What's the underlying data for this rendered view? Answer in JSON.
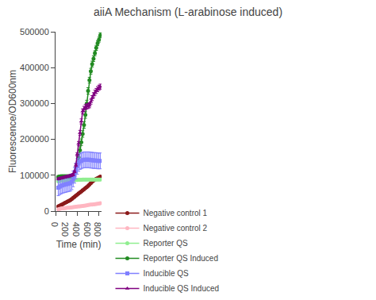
{
  "chart_data": {
    "type": "line",
    "title": "aiiA Mechanism (L-arabinose induced)",
    "xlabel": "Time (min)",
    "ylabel": "Fluorescence/OD600nm",
    "xlim": [
      0,
      850
    ],
    "ylim": [
      0,
      500000
    ],
    "xticks": [
      0,
      200,
      400,
      600,
      800
    ],
    "yticks": [
      0,
      100000,
      200000,
      300000,
      400000,
      500000
    ],
    "grid": false,
    "legend": "bottom",
    "x": [
      50,
      75,
      100,
      125,
      150,
      175,
      200,
      225,
      250,
      275,
      300,
      325,
      350,
      375,
      400,
      425,
      450,
      475,
      500,
      525,
      550,
      575,
      600,
      625,
      650,
      675,
      700,
      725,
      750,
      775,
      800,
      825
    ],
    "series": [
      {
        "name": "Negative control 1",
        "color": "#8B1A1A",
        "marker": "circle",
        "values": [
          13000,
          15000,
          17000,
          19000,
          21000,
          23000,
          25000,
          27000,
          29000,
          31000,
          34000,
          37000,
          40000,
          43000,
          46000,
          49000,
          52000,
          55000,
          58000,
          61000,
          64000,
          67000,
          70000,
          74000,
          78000,
          82000,
          85000,
          88000,
          90000,
          92000,
          94000,
          96000
        ],
        "yerr": [
          1500,
          1500,
          1500,
          1500,
          1500,
          1500,
          1500,
          1500,
          1500,
          1500,
          1500,
          1500,
          1500,
          1500,
          1500,
          1500,
          1500,
          1500,
          1500,
          1500,
          1500,
          1500,
          1500,
          1500,
          1500,
          1500,
          1500,
          1500,
          1500,
          1500,
          1500,
          1500
        ]
      },
      {
        "name": "Negative control 2",
        "color": "#FFB6C1",
        "marker": "circle",
        "values": [
          5000,
          6000,
          7000,
          7500,
          8000,
          8500,
          9000,
          9500,
          9500,
          10000,
          10500,
          11000,
          11500,
          12000,
          12500,
          13000,
          13500,
          14000,
          14500,
          15000,
          15500,
          16000,
          17000,
          17500,
          18000,
          18500,
          19000,
          19500,
          20000,
          20500,
          21000,
          22000
        ],
        "yerr": [
          800,
          800,
          800,
          800,
          800,
          800,
          800,
          800,
          800,
          800,
          800,
          800,
          800,
          800,
          800,
          800,
          800,
          800,
          800,
          800,
          800,
          800,
          800,
          800,
          800,
          800,
          800,
          800,
          800,
          800,
          800,
          800
        ]
      },
      {
        "name": "Reporter QS",
        "color": "#90EE90",
        "marker": "circle",
        "values": [
          83000,
          84000,
          84500,
          85000,
          85000,
          85000,
          85500,
          86000,
          86000,
          86000,
          86000,
          86000,
          86500,
          87000,
          87000,
          87500,
          87500,
          87500,
          88000,
          88000,
          88000,
          88000,
          88000,
          88000,
          88000,
          88000,
          88000,
          88000,
          88000,
          88000,
          88000,
          88000
        ],
        "yerr": [
          2000,
          2000,
          2000,
          2000,
          2000,
          2000,
          2000,
          2000,
          2000,
          2000,
          2000,
          2000,
          2000,
          2000,
          2000,
          2000,
          2000,
          2000,
          2000,
          2000,
          2000,
          2000,
          2000,
          2000,
          2000,
          2000,
          2000,
          2000,
          2000,
          2000,
          2000,
          2000
        ]
      },
      {
        "name": "Reporter QS Induced",
        "color": "#228B22",
        "marker": "circle",
        "values": [
          95000,
          96000,
          97000,
          97000,
          97000,
          97000,
          97000,
          97000,
          97000,
          97000,
          98000,
          100000,
          105000,
          115000,
          130000,
          150000,
          170000,
          192000,
          215000,
          240000,
          268000,
          300000,
          335000,
          365000,
          390000,
          410000,
          425000,
          440000,
          455000,
          468000,
          478000,
          490000
        ],
        "yerr": [
          4000,
          4000,
          4000,
          4000,
          4000,
          4000,
          4000,
          4000,
          4000,
          4000,
          4000,
          4000,
          5000,
          6000,
          7000,
          8000,
          9000,
          9000,
          9000,
          9000,
          9000,
          9000,
          9000,
          8000,
          8000,
          8000,
          8000,
          7000,
          7000,
          7000,
          7000,
          7000
        ]
      },
      {
        "name": "Inducible QS",
        "color": "#8080FF",
        "marker": "square",
        "values": [
          65000,
          68000,
          70000,
          72000,
          73000,
          74000,
          75000,
          76000,
          77000,
          78000,
          82000,
          90000,
          100000,
          112000,
          125000,
          133000,
          138000,
          140000,
          142000,
          143000,
          143000,
          143000,
          143000,
          143000,
          142000,
          142000,
          141000,
          141000,
          141000,
          140000,
          140000,
          140000
        ],
        "yerr": [
          22000,
          22000,
          22000,
          22000,
          22000,
          22000,
          22000,
          22000,
          22000,
          22000,
          22000,
          22000,
          22000,
          22000,
          22000,
          22000,
          22000,
          22000,
          22000,
          22000,
          22000,
          22000,
          22000,
          22000,
          22000,
          22000,
          22000,
          22000,
          22000,
          22000,
          22000,
          22000
        ]
      },
      {
        "name": "Inducible QS Induced",
        "color": "#800080",
        "marker": "triangle-up",
        "values": [
          90000,
          91000,
          92000,
          93000,
          94000,
          95000,
          96000,
          97000,
          98000,
          99000,
          100000,
          102000,
          110000,
          128000,
          158000,
          188000,
          218000,
          250000,
          278000,
          285000,
          290000,
          292000,
          293000,
          295000,
          305000,
          315000,
          323000,
          330000,
          335000,
          340000,
          344000,
          347000
        ],
        "yerr": [
          3000,
          3000,
          3000,
          3000,
          3000,
          3000,
          3000,
          3000,
          3000,
          3000,
          3000,
          3000,
          3000,
          4000,
          5000,
          6000,
          7000,
          7000,
          7000,
          7000,
          7000,
          7000,
          7000,
          7000,
          7000,
          7000,
          7000,
          7000,
          7000,
          7000,
          7000,
          7000
        ]
      }
    ]
  }
}
